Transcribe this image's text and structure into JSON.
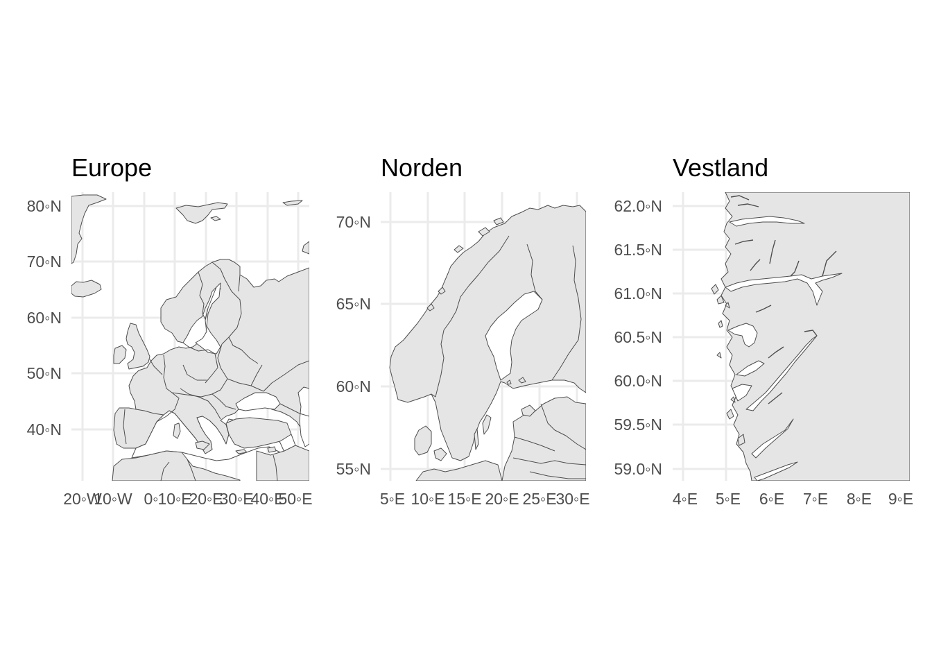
{
  "panels": [
    {
      "id": "europe",
      "title": "Europe",
      "x_ticks": [
        "20◦W",
        "10◦W",
        "0◦",
        "10◦E",
        "20◦E",
        "30◦E",
        "40◦E",
        "50◦E"
      ],
      "y_ticks": [
        "80◦N",
        "70◦N",
        "60◦N",
        "50◦N",
        "40◦N"
      ],
      "xlim": [
        -22,
        53
      ],
      "ylim": [
        30,
        82.5
      ]
    },
    {
      "id": "norden",
      "title": "Norden",
      "x_ticks": [
        "5◦E",
        "10◦E",
        "15◦E",
        "20◦E",
        "25◦E",
        "30◦E"
      ],
      "y_ticks": [
        "70◦N",
        "65◦N",
        "60◦N",
        "55◦N"
      ],
      "xlim": [
        5,
        31
      ],
      "ylim": [
        54.3,
        72
      ]
    },
    {
      "id": "vestland",
      "title": "Vestland",
      "x_ticks": [
        "4◦E",
        "5◦E",
        "6◦E",
        "7◦E",
        "8◦E",
        "9◦E"
      ],
      "y_ticks": [
        "62.0◦N",
        "61.5◦N",
        "61.0◦N",
        "60.5◦N",
        "60.0◦N",
        "59.5◦N",
        "59.0◦N"
      ],
      "xlim": [
        3.8,
        9.2
      ],
      "ylim": [
        58.8,
        62.2
      ]
    }
  ]
}
